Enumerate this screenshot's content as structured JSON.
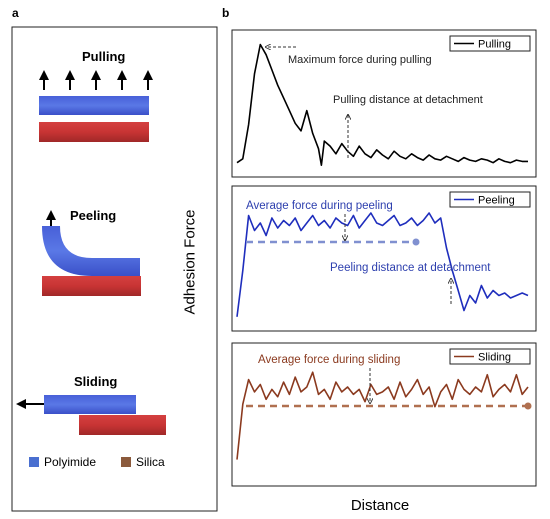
{
  "panel_a": {
    "letter": "a",
    "pulling_label": "Pulling",
    "peeling_label": "Peeling",
    "sliding_label": "Sliding",
    "legend": [
      {
        "name": "Polyimide",
        "color": "#4a6fd0"
      },
      {
        "name": "Silica",
        "color": "#8b5a3c"
      }
    ]
  },
  "panel_b": {
    "letter": "b",
    "ylabel": "Adhesion Force",
    "xlabel": "Distance"
  },
  "chart_data": [
    {
      "type": "line",
      "legend": "Pulling",
      "color": "#000000",
      "annotations": [
        "Maximum force during pulling",
        "Pulling distance at detachment"
      ],
      "x": [
        0,
        2,
        4,
        6,
        8,
        10,
        12,
        14,
        16,
        18,
        20,
        22,
        24,
        26,
        28,
        29,
        30,
        32,
        34,
        36,
        38,
        40,
        42,
        44,
        46,
        48,
        50,
        52,
        54,
        56,
        58,
        60,
        62,
        64,
        66,
        68,
        70,
        72,
        74,
        76,
        78,
        80,
        82,
        84,
        86,
        88,
        90,
        92,
        94,
        96,
        98,
        100
      ],
      "y": [
        5,
        8,
        35,
        75,
        98,
        90,
        78,
        66,
        56,
        46,
        36,
        30,
        46,
        28,
        16,
        3,
        22,
        18,
        12,
        20,
        14,
        10,
        18,
        12,
        9,
        15,
        11,
        8,
        14,
        10,
        8,
        12,
        9,
        7,
        11,
        8,
        7,
        10,
        8,
        6,
        9,
        7,
        6,
        8,
        7,
        5,
        8,
        6,
        5,
        7,
        6,
        6
      ]
    },
    {
      "type": "line",
      "legend": "Peeling",
      "color": "#1f2ebd",
      "annotations": [
        "Average force during peeling",
        "Peeling distance at detachment"
      ],
      "x": [
        0,
        2,
        4,
        6,
        8,
        10,
        12,
        14,
        16,
        18,
        20,
        22,
        24,
        26,
        28,
        30,
        32,
        34,
        36,
        38,
        40,
        42,
        44,
        46,
        48,
        50,
        52,
        54,
        56,
        58,
        60,
        62,
        64,
        66,
        68,
        70,
        72,
        74,
        76,
        78,
        80,
        82,
        84,
        86,
        88,
        90,
        92,
        94,
        96,
        98,
        100
      ],
      "y": [
        5,
        42,
        86,
        74,
        80,
        70,
        84,
        76,
        82,
        78,
        84,
        74,
        80,
        86,
        78,
        82,
        76,
        84,
        80,
        78,
        86,
        76,
        82,
        88,
        80,
        78,
        82,
        86,
        78,
        80,
        84,
        78,
        82,
        88,
        80,
        84,
        60,
        42,
        26,
        10,
        22,
        16,
        30,
        20,
        26,
        22,
        24,
        20,
        22,
        24,
        22
      ]
    },
    {
      "type": "line",
      "legend": "Sliding",
      "color": "#8b3a1f",
      "annotations": [
        "Average force during sliding"
      ],
      "x": [
        0,
        2,
        4,
        6,
        8,
        10,
        12,
        14,
        16,
        18,
        20,
        22,
        24,
        26,
        28,
        30,
        32,
        34,
        36,
        38,
        40,
        42,
        44,
        46,
        48,
        50,
        52,
        54,
        56,
        58,
        60,
        62,
        64,
        66,
        68,
        70,
        72,
        74,
        76,
        78,
        80,
        82,
        84,
        86,
        88,
        90,
        92,
        94,
        96,
        98,
        100
      ],
      "y": [
        15,
        60,
        80,
        70,
        76,
        64,
        72,
        66,
        78,
        68,
        82,
        70,
        74,
        86,
        68,
        72,
        64,
        78,
        70,
        74,
        68,
        72,
        62,
        76,
        68,
        70,
        74,
        64,
        78,
        66,
        72,
        80,
        68,
        74,
        58,
        70,
        76,
        64,
        80,
        72,
        68,
        74,
        70,
        84,
        66,
        72,
        76,
        70,
        84,
        68,
        74
      ]
    }
  ]
}
